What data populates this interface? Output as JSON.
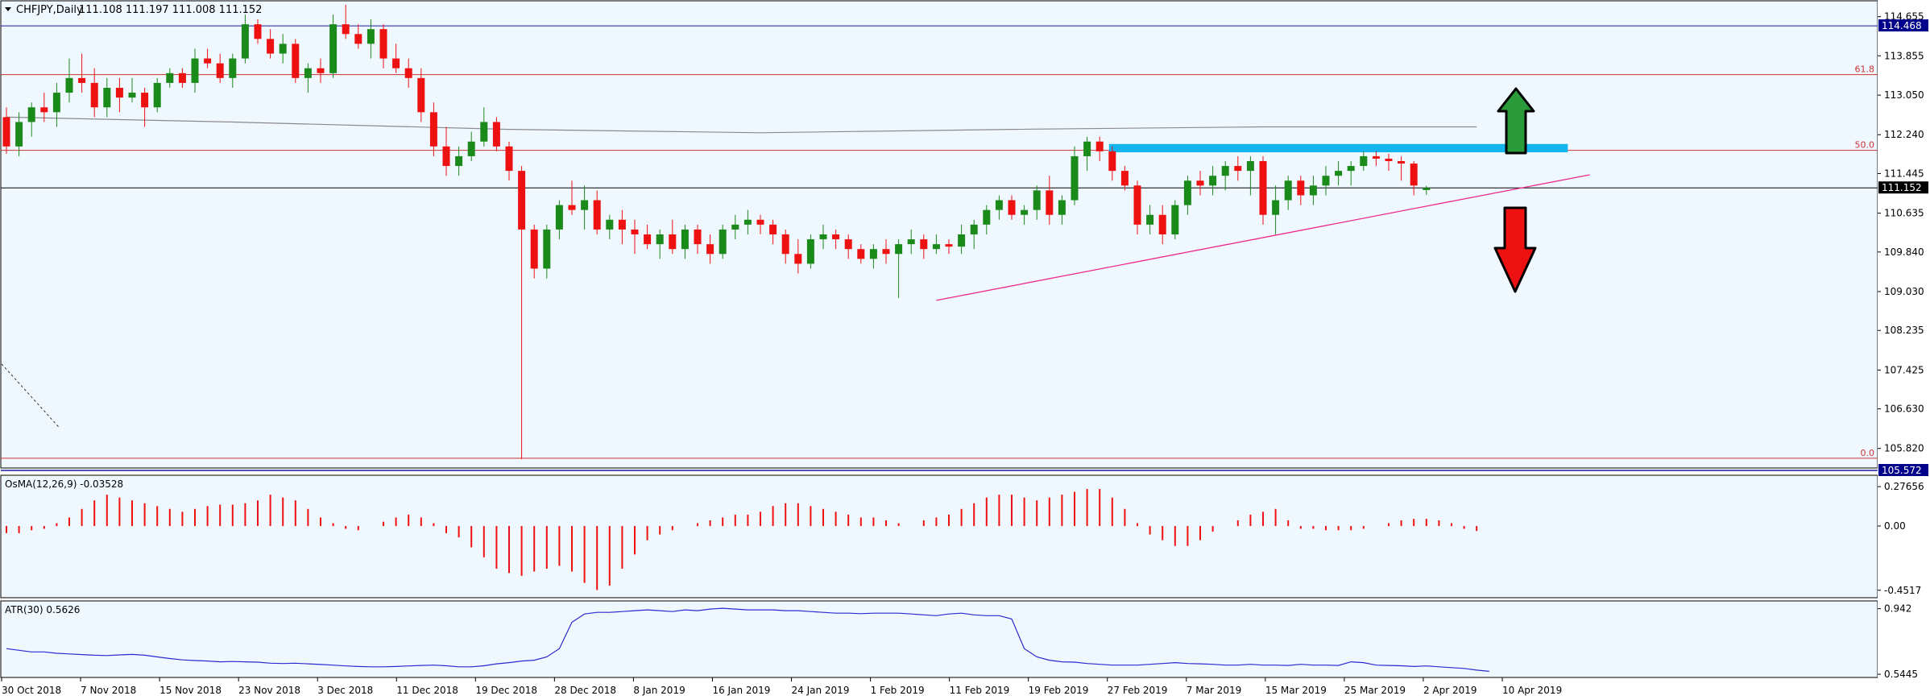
{
  "chart_data": {
    "type": "candlestick",
    "symbol_title": "CHFJPY,Daily",
    "ohlc_header": "111.108 111.197 111.008 111.152",
    "colors": {
      "background": "#f0f8ff",
      "up": "#1a8a1a",
      "down": "#ee1111",
      "grid": "#000000",
      "ma": "#8a8a8a",
      "trendline": "#ee2a8a",
      "resistance_zone": "#14b4ee",
      "fib_line": "#cc3333",
      "arrow_up": "#2a9a3a",
      "arrow_down": "#ee1111",
      "label_bg": "#00008b"
    },
    "price_axis": {
      "range": [
        105.42,
        114.98
      ],
      "ticks": [
        "114.655",
        "113.855",
        "113.050",
        "112.240",
        "111.445",
        "110.635",
        "109.840",
        "109.030",
        "108.235",
        "107.425",
        "106.630",
        "105.820"
      ],
      "current_price_label": "111.152",
      "high_label": "114.468",
      "low_label": "105.572"
    },
    "fibonacci": [
      {
        "label": "61.8",
        "price": 113.47
      },
      {
        "label": "50.0",
        "price": 111.92
      },
      {
        "label": "0.0",
        "price": 105.62
      }
    ],
    "horizontal_lines": [
      {
        "name": "high",
        "price": 114.468
      },
      {
        "name": "current",
        "price": 111.152
      }
    ],
    "x_axis_labels": [
      "30 Oct 2018",
      "7 Nov 2018",
      "15 Nov 2018",
      "23 Nov 2018",
      "3 Dec 2018",
      "11 Dec 2018",
      "19 Dec 2018",
      "28 Dec 2018",
      "8 Jan 2019",
      "16 Jan 2019",
      "24 Jan 2019",
      "1 Feb 2019",
      "11 Feb 2019",
      "19 Feb 2019",
      "27 Feb 2019",
      "7 Mar 2019",
      "15 Mar 2019",
      "25 Mar 2019",
      "2 Apr 2019",
      "10 Apr 2019"
    ],
    "candles": [
      [
        112.6,
        112.8,
        111.85,
        112.0
      ],
      [
        112.0,
        112.7,
        111.8,
        112.5
      ],
      [
        112.5,
        112.9,
        112.2,
        112.8
      ],
      [
        112.8,
        113.1,
        112.5,
        112.7
      ],
      [
        112.7,
        113.3,
        112.4,
        113.1
      ],
      [
        113.1,
        113.8,
        112.9,
        113.4
      ],
      [
        113.4,
        113.9,
        113.1,
        113.3
      ],
      [
        113.3,
        113.6,
        112.6,
        112.8
      ],
      [
        112.8,
        113.4,
        112.6,
        113.2
      ],
      [
        113.2,
        113.4,
        112.7,
        113.0
      ],
      [
        113.0,
        113.4,
        112.9,
        113.1
      ],
      [
        113.1,
        113.2,
        112.4,
        112.8
      ],
      [
        112.8,
        113.4,
        112.7,
        113.3
      ],
      [
        113.3,
        113.6,
        113.2,
        113.5
      ],
      [
        113.5,
        113.6,
        113.2,
        113.3
      ],
      [
        113.3,
        114.0,
        113.1,
        113.8
      ],
      [
        113.8,
        114.0,
        113.6,
        113.7
      ],
      [
        113.7,
        113.9,
        113.3,
        113.4
      ],
      [
        113.4,
        113.9,
        113.2,
        113.8
      ],
      [
        113.8,
        114.7,
        113.7,
        114.5
      ],
      [
        114.5,
        114.6,
        114.1,
        114.2
      ],
      [
        114.2,
        114.4,
        113.8,
        113.9
      ],
      [
        113.9,
        114.3,
        113.7,
        114.1
      ],
      [
        114.1,
        114.2,
        113.3,
        113.4
      ],
      [
        113.4,
        113.7,
        113.1,
        113.6
      ],
      [
        113.6,
        113.8,
        113.3,
        113.5
      ],
      [
        113.5,
        114.7,
        113.4,
        114.5
      ],
      [
        114.5,
        114.9,
        114.2,
        114.3
      ],
      [
        114.3,
        114.5,
        114.0,
        114.1
      ],
      [
        114.1,
        114.6,
        113.8,
        114.4
      ],
      [
        114.4,
        114.5,
        113.6,
        113.8
      ],
      [
        113.8,
        114.1,
        113.5,
        113.6
      ],
      [
        113.6,
        113.8,
        113.2,
        113.4
      ],
      [
        113.4,
        113.6,
        112.5,
        112.7
      ],
      [
        112.7,
        112.9,
        111.8,
        112.0
      ],
      [
        112.0,
        112.4,
        111.4,
        111.6
      ],
      [
        111.6,
        112.0,
        111.4,
        111.8
      ],
      [
        111.8,
        112.3,
        111.7,
        112.1
      ],
      [
        112.1,
        112.8,
        112.0,
        112.5
      ],
      [
        112.5,
        112.6,
        111.9,
        112.0
      ],
      [
        112.0,
        112.1,
        111.3,
        111.5
      ],
      [
        111.5,
        111.6,
        105.6,
        110.3
      ],
      [
        110.3,
        110.4,
        109.3,
        109.5
      ],
      [
        109.5,
        110.4,
        109.3,
        110.3
      ],
      [
        110.3,
        110.9,
        110.1,
        110.8
      ],
      [
        110.8,
        111.3,
        110.6,
        110.7
      ],
      [
        110.7,
        111.2,
        110.3,
        110.9
      ],
      [
        110.9,
        111.1,
        110.2,
        110.3
      ],
      [
        110.3,
        110.6,
        110.1,
        110.5
      ],
      [
        110.5,
        110.7,
        110.0,
        110.3
      ],
      [
        110.3,
        110.5,
        109.8,
        110.2
      ],
      [
        110.2,
        110.4,
        109.9,
        110.0
      ],
      [
        110.0,
        110.3,
        109.7,
        110.2
      ],
      [
        110.2,
        110.5,
        109.8,
        109.9
      ],
      [
        109.9,
        110.4,
        109.7,
        110.3
      ],
      [
        110.3,
        110.4,
        109.8,
        110.0
      ],
      [
        110.0,
        110.2,
        109.6,
        109.8
      ],
      [
        109.8,
        110.4,
        109.7,
        110.3
      ],
      [
        110.3,
        110.6,
        110.1,
        110.4
      ],
      [
        110.4,
        110.7,
        110.2,
        110.5
      ],
      [
        110.5,
        110.6,
        110.2,
        110.4
      ],
      [
        110.4,
        110.5,
        110.0,
        110.2
      ],
      [
        110.2,
        110.3,
        109.6,
        109.8
      ],
      [
        109.8,
        110.1,
        109.4,
        109.6
      ],
      [
        109.6,
        110.2,
        109.5,
        110.1
      ],
      [
        110.1,
        110.4,
        109.9,
        110.2
      ],
      [
        110.2,
        110.3,
        109.9,
        110.1
      ],
      [
        110.1,
        110.2,
        109.7,
        109.9
      ],
      [
        109.9,
        110.0,
        109.6,
        109.7
      ],
      [
        109.7,
        110.0,
        109.5,
        109.9
      ],
      [
        109.9,
        110.1,
        109.6,
        109.8
      ],
      [
        109.8,
        110.1,
        108.9,
        110.0
      ],
      [
        110.0,
        110.3,
        109.8,
        110.1
      ],
      [
        110.1,
        110.2,
        109.7,
        109.9
      ],
      [
        109.9,
        110.2,
        109.8,
        110.0
      ],
      [
        110.0,
        110.1,
        109.8,
        109.95
      ],
      [
        109.95,
        110.4,
        109.8,
        110.2
      ],
      [
        110.2,
        110.5,
        109.9,
        110.4
      ],
      [
        110.4,
        110.8,
        110.2,
        110.7
      ],
      [
        110.7,
        111.0,
        110.5,
        110.9
      ],
      [
        110.9,
        111.0,
        110.5,
        110.6
      ],
      [
        110.6,
        110.8,
        110.4,
        110.7
      ],
      [
        110.7,
        111.2,
        110.5,
        111.1
      ],
      [
        111.1,
        111.4,
        110.4,
        110.6
      ],
      [
        110.6,
        111.0,
        110.4,
        110.9
      ],
      [
        110.9,
        112.0,
        110.8,
        111.8
      ],
      [
        111.8,
        112.2,
        111.5,
        112.1
      ],
      [
        112.1,
        112.2,
        111.7,
        111.9
      ],
      [
        111.9,
        112.0,
        111.3,
        111.5
      ],
      [
        111.5,
        111.6,
        111.1,
        111.2
      ],
      [
        111.2,
        111.3,
        110.2,
        110.4
      ],
      [
        110.4,
        110.8,
        110.2,
        110.6
      ],
      [
        110.6,
        110.8,
        110.0,
        110.2
      ],
      [
        110.2,
        110.9,
        110.1,
        110.8
      ],
      [
        110.8,
        111.4,
        110.6,
        111.3
      ],
      [
        111.3,
        111.5,
        111.0,
        111.2
      ],
      [
        111.2,
        111.6,
        111.0,
        111.4
      ],
      [
        111.4,
        111.7,
        111.1,
        111.6
      ],
      [
        111.6,
        111.8,
        111.3,
        111.5
      ],
      [
        111.5,
        111.8,
        111.0,
        111.7
      ],
      [
        111.7,
        111.8,
        110.4,
        110.6
      ],
      [
        110.6,
        111.2,
        110.2,
        110.9
      ],
      [
        110.9,
        111.4,
        110.7,
        111.3
      ],
      [
        111.3,
        111.4,
        110.8,
        111.0
      ],
      [
        111.0,
        111.4,
        110.8,
        111.2
      ],
      [
        111.2,
        111.6,
        111.0,
        111.4
      ],
      [
        111.4,
        111.7,
        111.2,
        111.5
      ],
      [
        111.5,
        111.7,
        111.2,
        111.6
      ],
      [
        111.6,
        111.9,
        111.5,
        111.8
      ],
      [
        111.8,
        111.9,
        111.6,
        111.75
      ],
      [
        111.75,
        111.85,
        111.5,
        111.7
      ],
      [
        111.7,
        111.8,
        111.3,
        111.65
      ],
      [
        111.65,
        111.7,
        111.0,
        111.2
      ],
      [
        111.108,
        111.197,
        111.008,
        111.152
      ]
    ],
    "moving_average_path": [
      [
        0,
        112.6
      ],
      [
        18,
        112.5
      ],
      [
        40,
        112.35
      ],
      [
        60,
        112.28
      ],
      [
        80,
        112.35
      ],
      [
        100,
        112.4
      ],
      [
        117,
        112.4
      ]
    ],
    "trendlines": [
      {
        "name": "rising-support",
        "from": [
          74,
          108.85
        ],
        "to": [
          126,
          111.42
        ]
      },
      {
        "name": "resistance-zone",
        "from_index": 88,
        "to_index": 124,
        "price_top": 112.05,
        "price_bottom": 111.88
      },
      {
        "name": "dashed-descending",
        "from": [
          0,
          107.55
        ],
        "to": [
          4,
          106.25
        ]
      }
    ],
    "arrows": [
      {
        "name": "up-arrow",
        "direction": "up"
      },
      {
        "name": "down-arrow",
        "direction": "down"
      }
    ],
    "osma": {
      "title": "OsMA(12,26,9) -0.03528",
      "ticks": [
        "0.27656",
        "0.00",
        "-0.4517"
      ],
      "range": [
        -0.47,
        0.3
      ],
      "values": [
        -0.05,
        -0.05,
        -0.03,
        -0.02,
        0.02,
        0.06,
        0.12,
        0.18,
        0.22,
        0.2,
        0.18,
        0.16,
        0.14,
        0.12,
        0.1,
        0.12,
        0.14,
        0.15,
        0.15,
        0.16,
        0.18,
        0.22,
        0.2,
        0.18,
        0.12,
        0.06,
        0.02,
        -0.02,
        -0.03,
        0.0,
        0.03,
        0.06,
        0.08,
        0.06,
        0.02,
        -0.05,
        -0.08,
        -0.15,
        -0.22,
        -0.3,
        -0.33,
        -0.35,
        -0.32,
        -0.3,
        -0.28,
        -0.32,
        -0.4,
        -0.45,
        -0.42,
        -0.3,
        -0.2,
        -0.1,
        -0.06,
        -0.03,
        0.0,
        0.02,
        0.04,
        0.06,
        0.08,
        0.08,
        0.1,
        0.14,
        0.16,
        0.16,
        0.14,
        0.12,
        0.1,
        0.08,
        0.06,
        0.06,
        0.04,
        0.02,
        0.0,
        0.04,
        0.06,
        0.08,
        0.12,
        0.16,
        0.2,
        0.22,
        0.22,
        0.2,
        0.18,
        0.2,
        0.22,
        0.24,
        0.26,
        0.26,
        0.2,
        0.12,
        0.02,
        -0.06,
        -0.1,
        -0.14,
        -0.14,
        -0.1,
        -0.04,
        0.0,
        0.04,
        0.08,
        0.1,
        0.12,
        0.04,
        -0.02,
        -0.02,
        -0.03,
        -0.03,
        -0.03,
        -0.02,
        0.0,
        0.02,
        0.04,
        0.05,
        0.05,
        0.04,
        0.02,
        -0.02,
        -0.035
      ]
    },
    "atr": {
      "title": "ATR(30) 0.5626",
      "ticks": [
        "0.942",
        "0.5445"
      ],
      "range": [
        0.54,
        0.96
      ],
      "values": [
        0.7,
        0.69,
        0.68,
        0.68,
        0.672,
        0.668,
        0.664,
        0.66,
        0.658,
        0.662,
        0.665,
        0.66,
        0.65,
        0.64,
        0.632,
        0.628,
        0.625,
        0.62,
        0.622,
        0.62,
        0.618,
        0.612,
        0.61,
        0.612,
        0.608,
        0.604,
        0.6,
        0.595,
        0.592,
        0.59,
        0.59,
        0.592,
        0.595,
        0.598,
        0.6,
        0.596,
        0.59,
        0.59,
        0.596,
        0.608,
        0.615,
        0.625,
        0.63,
        0.65,
        0.7,
        0.86,
        0.91,
        0.92,
        0.92,
        0.925,
        0.93,
        0.935,
        0.93,
        0.925,
        0.935,
        0.93,
        0.94,
        0.945,
        0.94,
        0.935,
        0.935,
        0.935,
        0.93,
        0.93,
        0.925,
        0.92,
        0.915,
        0.915,
        0.912,
        0.915,
        0.915,
        0.915,
        0.91,
        0.905,
        0.9,
        0.91,
        0.915,
        0.905,
        0.9,
        0.9,
        0.88,
        0.7,
        0.65,
        0.63,
        0.62,
        0.618,
        0.61,
        0.605,
        0.6,
        0.6,
        0.6,
        0.605,
        0.61,
        0.615,
        0.61,
        0.608,
        0.605,
        0.6,
        0.6,
        0.605,
        0.6,
        0.6,
        0.598,
        0.605,
        0.6,
        0.6,
        0.598,
        0.62,
        0.615,
        0.6,
        0.598,
        0.596,
        0.592,
        0.595,
        0.59,
        0.585,
        0.58,
        0.57,
        0.5626
      ]
    }
  }
}
